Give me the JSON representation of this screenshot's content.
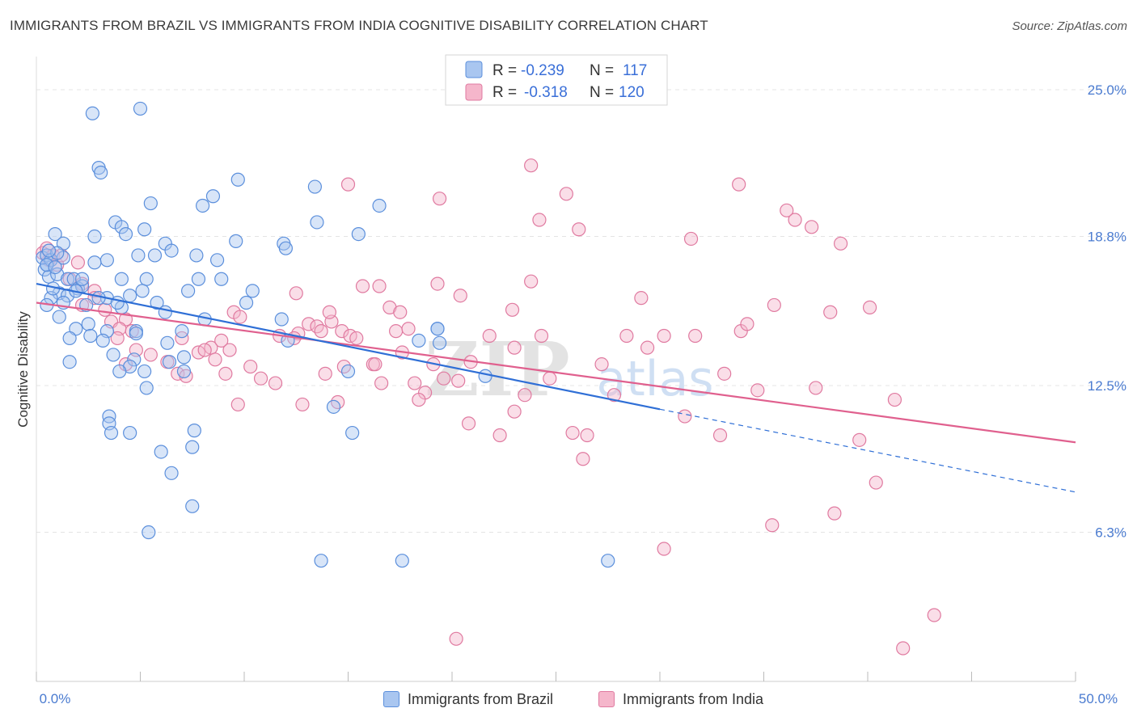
{
  "header": {
    "title": "IMMIGRANTS FROM BRAZIL VS IMMIGRANTS FROM INDIA COGNITIVE DISABILITY CORRELATION CHART",
    "source": "Source: ZipAtlas.com"
  },
  "legend": {
    "brazil": {
      "r_label": "R =",
      "r_value": "-0.239",
      "n_label": "N =",
      "n_value": "117"
    },
    "india": {
      "r_label": "R =",
      "r_value": "-0.318",
      "n_label": "N =",
      "n_value": "120"
    }
  },
  "watermark": {
    "zip": "ZIP",
    "atlas": "atlas"
  },
  "colors": {
    "brazil_fill": "#a9c6f0",
    "brazil_stroke": "#5b8fdc",
    "brazil_line": "#2f6fd6",
    "india_fill": "#f5b6cb",
    "india_stroke": "#e07aa0",
    "india_line": "#e0608e",
    "tick_text": "#4a7bd0"
  },
  "chart_data": {
    "type": "scatter",
    "title": "IMMIGRANTS FROM BRAZIL VS IMMIGRANTS FROM INDIA COGNITIVE DISABILITY CORRELATION CHART",
    "xlabel": "",
    "ylabel": "Cognitive Disability",
    "xlim": [
      0,
      50
    ],
    "ylim": [
      0,
      26.4
    ],
    "x_tick_labels": [
      "0.0%",
      "50.0%"
    ],
    "y_ticks": [
      6.3,
      12.5,
      18.8,
      25.0
    ],
    "y_tick_labels": [
      "6.3%",
      "12.5%",
      "18.8%",
      "25.0%"
    ],
    "grid": true,
    "series": [
      {
        "name": "Immigrants from Brazil",
        "r": -0.239,
        "n": 117,
        "trend": {
          "x0": 0,
          "y0": 16.8,
          "x1": 30,
          "y1": 11.5,
          "dash_x1": 50,
          "dash_y1": 8.0
        },
        "points": [
          [
            2.7,
            24.0
          ],
          [
            5.0,
            24.2
          ],
          [
            3.0,
            21.7
          ],
          [
            3.1,
            21.5
          ],
          [
            9.7,
            21.2
          ],
          [
            13.4,
            20.9
          ],
          [
            8.5,
            20.5
          ],
          [
            8.0,
            20.1
          ],
          [
            5.5,
            20.2
          ],
          [
            16.5,
            20.1
          ],
          [
            3.8,
            19.4
          ],
          [
            5.2,
            19.1
          ],
          [
            4.1,
            19.2
          ],
          [
            13.5,
            19.4
          ],
          [
            15.5,
            18.9
          ],
          [
            2.8,
            18.8
          ],
          [
            4.3,
            18.9
          ],
          [
            9.6,
            18.6
          ],
          [
            11.9,
            18.5
          ],
          [
            12.0,
            18.3
          ],
          [
            6.2,
            18.5
          ],
          [
            6.5,
            18.2
          ],
          [
            0.9,
            18.9
          ],
          [
            1.3,
            18.5
          ],
          [
            7.7,
            18.0
          ],
          [
            4.9,
            18.0
          ],
          [
            5.7,
            18.0
          ],
          [
            8.7,
            17.8
          ],
          [
            3.4,
            17.8
          ],
          [
            2.8,
            17.7
          ],
          [
            0.5,
            17.6
          ],
          [
            0.4,
            17.4
          ],
          [
            0.6,
            17.1
          ],
          [
            1.0,
            17.2
          ],
          [
            1.5,
            17.0
          ],
          [
            1.8,
            17.0
          ],
          [
            4.1,
            17.0
          ],
          [
            5.3,
            17.0
          ],
          [
            7.8,
            17.0
          ],
          [
            8.9,
            17.0
          ],
          [
            2.0,
            16.6
          ],
          [
            2.2,
            16.7
          ],
          [
            1.1,
            16.4
          ],
          [
            1.5,
            16.3
          ],
          [
            1.9,
            16.5
          ],
          [
            0.7,
            16.2
          ],
          [
            3.4,
            16.2
          ],
          [
            4.5,
            16.3
          ],
          [
            5.1,
            16.5
          ],
          [
            5.8,
            16.0
          ],
          [
            7.3,
            16.5
          ],
          [
            10.4,
            16.5
          ],
          [
            1.3,
            16.0
          ],
          [
            2.4,
            15.9
          ],
          [
            4.1,
            15.8
          ],
          [
            3.9,
            16.0
          ],
          [
            0.5,
            15.9
          ],
          [
            1.1,
            15.4
          ],
          [
            6.2,
            15.6
          ],
          [
            10.1,
            16.0
          ],
          [
            2.5,
            15.1
          ],
          [
            1.9,
            14.9
          ],
          [
            3.4,
            14.8
          ],
          [
            4.8,
            14.8
          ],
          [
            7.0,
            14.8
          ],
          [
            8.1,
            15.3
          ],
          [
            11.8,
            15.3
          ],
          [
            1.6,
            14.5
          ],
          [
            2.6,
            14.6
          ],
          [
            4.8,
            14.7
          ],
          [
            3.2,
            14.4
          ],
          [
            6.3,
            14.3
          ],
          [
            12.1,
            14.4
          ],
          [
            18.4,
            14.4
          ],
          [
            19.4,
            14.3
          ],
          [
            19.3,
            14.9
          ],
          [
            3.7,
            13.8
          ],
          [
            4.7,
            13.6
          ],
          [
            6.4,
            13.5
          ],
          [
            7.1,
            13.7
          ],
          [
            1.6,
            13.5
          ],
          [
            4.5,
            13.3
          ],
          [
            4.0,
            13.1
          ],
          [
            5.2,
            13.1
          ],
          [
            7.1,
            13.1
          ],
          [
            15.0,
            13.1
          ],
          [
            21.6,
            12.9
          ],
          [
            5.3,
            12.4
          ],
          [
            3.5,
            11.2
          ],
          [
            3.5,
            10.9
          ],
          [
            3.6,
            10.5
          ],
          [
            4.5,
            10.5
          ],
          [
            7.6,
            10.6
          ],
          [
            7.5,
            9.9
          ],
          [
            14.3,
            11.6
          ],
          [
            15.2,
            10.5
          ],
          [
            6.0,
            9.7
          ],
          [
            6.5,
            8.8
          ],
          [
            7.5,
            7.4
          ],
          [
            5.4,
            6.3
          ],
          [
            13.7,
            5.1
          ],
          [
            17.6,
            5.1
          ],
          [
            27.5,
            5.1
          ],
          [
            19.3,
            14.9
          ],
          [
            3.0,
            16.2
          ],
          [
            2.2,
            17.0
          ],
          [
            0.8,
            16.6
          ],
          [
            0.3,
            17.9
          ],
          [
            0.5,
            18.0
          ],
          [
            0.7,
            17.8
          ],
          [
            0.5,
            17.6
          ],
          [
            0.9,
            17.5
          ],
          [
            1.3,
            17.9
          ],
          [
            1.0,
            18.1
          ],
          [
            0.6,
            18.2
          ]
        ]
      },
      {
        "name": "Immigrants from India",
        "r": -0.318,
        "n": 120,
        "trend": {
          "x0": 0,
          "y0": 16.0,
          "x1": 50,
          "y1": 10.1
        },
        "points": [
          [
            0.3,
            18.1
          ],
          [
            0.5,
            18.3
          ],
          [
            0.6,
            17.8
          ],
          [
            0.8,
            18.0
          ],
          [
            1.0,
            17.6
          ],
          [
            1.2,
            18.0
          ],
          [
            2.0,
            17.7
          ],
          [
            1.6,
            17.0
          ],
          [
            2.2,
            16.8
          ],
          [
            2.8,
            16.5
          ],
          [
            2.2,
            15.9
          ],
          [
            2.8,
            16.2
          ],
          [
            3.3,
            15.7
          ],
          [
            3.6,
            15.2
          ],
          [
            4.3,
            15.3
          ],
          [
            4.0,
            14.9
          ],
          [
            4.6,
            14.8
          ],
          [
            3.9,
            14.5
          ],
          [
            4.8,
            14.0
          ],
          [
            5.5,
            13.8
          ],
          [
            6.3,
            13.5
          ],
          [
            4.3,
            13.4
          ],
          [
            6.8,
            13.0
          ],
          [
            7.0,
            14.5
          ],
          [
            7.2,
            12.9
          ],
          [
            7.8,
            13.9
          ],
          [
            8.4,
            14.1
          ],
          [
            8.9,
            14.4
          ],
          [
            8.1,
            14.0
          ],
          [
            8.6,
            13.6
          ],
          [
            9.1,
            13.0
          ],
          [
            9.5,
            15.6
          ],
          [
            9.8,
            15.4
          ],
          [
            9.3,
            14.0
          ],
          [
            10.3,
            13.3
          ],
          [
            9.7,
            11.7
          ],
          [
            10.8,
            12.8
          ],
          [
            11.5,
            12.6
          ],
          [
            11.7,
            14.6
          ],
          [
            12.6,
            14.7
          ],
          [
            12.8,
            11.7
          ],
          [
            13.1,
            15.1
          ],
          [
            13.5,
            15.0
          ],
          [
            13.7,
            14.8
          ],
          [
            12.4,
            14.5
          ],
          [
            12.5,
            16.4
          ],
          [
            13.9,
            13.0
          ],
          [
            14.2,
            15.2
          ],
          [
            14.7,
            14.8
          ],
          [
            14.5,
            11.8
          ],
          [
            14.8,
            13.3
          ],
          [
            14.1,
            15.6
          ],
          [
            15.7,
            16.7
          ],
          [
            15.1,
            14.6
          ],
          [
            15.4,
            14.5
          ],
          [
            16.2,
            13.4
          ],
          [
            16.3,
            13.4
          ],
          [
            16.6,
            12.6
          ],
          [
            17.0,
            15.8
          ],
          [
            17.3,
            14.8
          ],
          [
            16.5,
            16.7
          ],
          [
            17.5,
            15.6
          ],
          [
            17.9,
            14.9
          ],
          [
            17.6,
            13.9
          ],
          [
            18.2,
            12.6
          ],
          [
            18.7,
            12.2
          ],
          [
            19.1,
            13.4
          ],
          [
            19.3,
            16.8
          ],
          [
            18.4,
            11.9
          ],
          [
            19.6,
            12.8
          ],
          [
            20.3,
            12.7
          ],
          [
            20.8,
            10.9
          ],
          [
            20.9,
            13.5
          ],
          [
            20.4,
            16.3
          ],
          [
            23.0,
            11.4
          ],
          [
            23.0,
            14.1
          ],
          [
            23.5,
            12.1
          ],
          [
            23.8,
            16.9
          ],
          [
            22.3,
            10.4
          ],
          [
            21.8,
            14.6
          ],
          [
            24.3,
            14.6
          ],
          [
            24.7,
            12.8
          ],
          [
            25.8,
            10.5
          ],
          [
            26.5,
            10.4
          ],
          [
            26.3,
            9.4
          ],
          [
            27.2,
            13.4
          ],
          [
            27.8,
            12.1
          ],
          [
            28.4,
            14.6
          ],
          [
            29.1,
            16.2
          ],
          [
            29.4,
            14.1
          ],
          [
            30.2,
            14.6
          ],
          [
            31.2,
            11.2
          ],
          [
            31.5,
            18.7
          ],
          [
            33.9,
            14.8
          ],
          [
            31.7,
            14.6
          ],
          [
            32.9,
            10.4
          ],
          [
            33.1,
            13.0
          ],
          [
            34.2,
            15.1
          ],
          [
            34.7,
            12.3
          ],
          [
            35.5,
            15.9
          ],
          [
            37.5,
            12.4
          ],
          [
            33.8,
            21.0
          ],
          [
            36.1,
            19.9
          ],
          [
            36.5,
            19.5
          ],
          [
            37.3,
            19.2
          ],
          [
            38.7,
            18.5
          ],
          [
            38.2,
            15.6
          ],
          [
            40.1,
            15.8
          ],
          [
            41.3,
            11.9
          ],
          [
            39.6,
            10.2
          ],
          [
            40.4,
            8.4
          ],
          [
            38.4,
            7.1
          ],
          [
            35.4,
            6.6
          ],
          [
            30.2,
            5.6
          ],
          [
            43.2,
            2.8
          ],
          [
            41.7,
            1.4
          ],
          [
            20.2,
            1.8
          ],
          [
            15.0,
            21.0
          ],
          [
            23.8,
            21.8
          ],
          [
            25.5,
            20.6
          ],
          [
            19.4,
            20.4
          ],
          [
            26.1,
            19.1
          ],
          [
            24.2,
            19.5
          ],
          [
            22.9,
            15.7
          ]
        ]
      }
    ]
  },
  "bottom_legend": {
    "brazil_label": "Immigrants from Brazil",
    "india_label": "Immigrants from India"
  }
}
